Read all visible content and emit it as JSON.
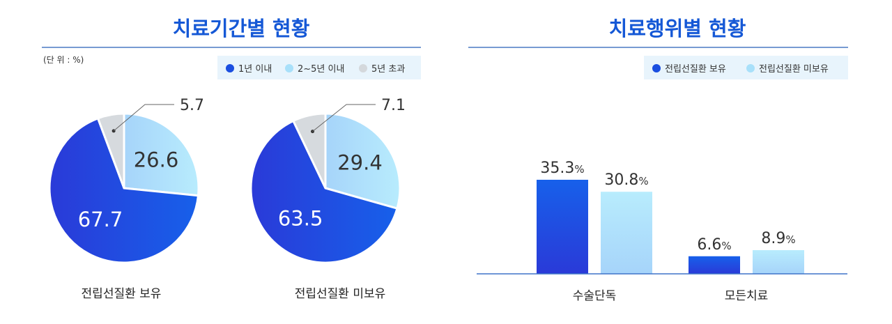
{
  "colors": {
    "title": "#1558d6",
    "rule": "#4a78c4",
    "legend_bg": "#e8f4fc",
    "within1": "#1a43d9",
    "y2to5": "#9fdcf8",
    "over5": "#d6dade",
    "holding": "#1a52e0",
    "notHolding": "#a8e0fa"
  },
  "left_panel": {
    "title": "치료기간별 현황",
    "unit": "(단 위 : %)",
    "legend": [
      {
        "label": "1년 이내",
        "color": "#1a4ee0"
      },
      {
        "label": "2~5년 이내",
        "color": "#a8e0fa"
      },
      {
        "label": "5년 초과",
        "color": "#d4d8dc"
      }
    ]
  },
  "right_panel": {
    "title": "치료행위별 현황",
    "legend": [
      {
        "label": "전립선질환 보유",
        "color": "#1a4ee0"
      },
      {
        "label": "전립선질환 미보유",
        "color": "#a8e0fa"
      }
    ]
  },
  "chart_data": [
    {
      "type": "pie",
      "title": "전립선질환 보유",
      "labels": [
        "1년 이내",
        "2~5년 이내",
        "5년 초과"
      ],
      "values": [
        67.7,
        26.6,
        5.7
      ],
      "value_labels": [
        "67.7",
        "26.6",
        "5.7"
      ]
    },
    {
      "type": "pie",
      "title": "전립선질환 미보유",
      "labels": [
        "1년 이내",
        "2~5년 이내",
        "5년 초과"
      ],
      "values": [
        63.5,
        29.4,
        7.1
      ],
      "value_labels": [
        "63.5",
        "29.4",
        "7.1"
      ]
    },
    {
      "type": "bar",
      "categories": [
        "수술단독",
        "모든치료"
      ],
      "series": [
        {
          "name": "전립선질환 보유",
          "values": [
            35.3,
            6.6
          ],
          "labels": [
            "35.3%",
            "6.6%"
          ]
        },
        {
          "name": "전립선질환 미보유",
          "values": [
            30.8,
            8.9
          ],
          "labels": [
            "30.8%",
            "8.9%"
          ]
        }
      ],
      "ylim": [
        0,
        40
      ]
    }
  ]
}
